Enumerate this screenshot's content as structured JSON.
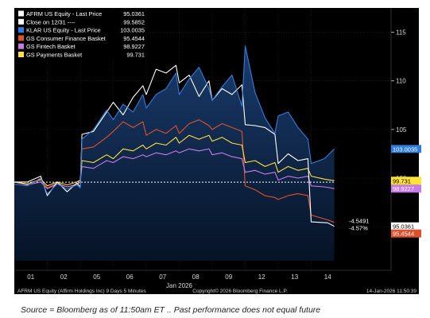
{
  "chart_data": {
    "type": "line",
    "title": "",
    "xlabel": "",
    "ylabel": "",
    "ylim": [
      91.5,
      117.5
    ],
    "y_ticks": [
      95,
      100,
      105,
      110,
      115
    ],
    "grid": true,
    "legend_position": "top-left",
    "x_tick_labels": [
      "01",
      "02",
      "05",
      "06",
      "07",
      "08",
      "09",
      "12",
      "13",
      "14"
    ],
    "month_label": "Jan 2026",
    "series": [
      {
        "name": "AFRM US Equity - Last Price",
        "legend_value": "95.0361",
        "color": "#ffffff",
        "end_label": "95.0361",
        "values": [
          [
            0,
            99.6
          ],
          [
            0.4,
            99.6
          ],
          [
            0.8,
            100.2
          ],
          [
            1.0,
            98.2
          ],
          [
            1.3,
            99.6
          ],
          [
            1.6,
            98.6
          ],
          [
            1.9,
            99.5
          ],
          [
            2.0,
            99.1
          ],
          [
            2.05,
            104.5
          ],
          [
            2.4,
            104.8
          ],
          [
            2.8,
            106.8
          ],
          [
            3.0,
            107.8
          ],
          [
            3.3,
            106.5
          ],
          [
            3.6,
            108.3
          ],
          [
            3.9,
            109.5
          ],
          [
            4.0,
            108.6
          ],
          [
            4.3,
            111.2
          ],
          [
            4.6,
            110.8
          ],
          [
            4.9,
            111.6
          ],
          [
            5.0,
            109.8
          ],
          [
            5.3,
            110.6
          ],
          [
            5.6,
            108.4
          ],
          [
            5.9,
            110.0
          ],
          [
            6.0,
            108.0
          ],
          [
            6.3,
            109.2
          ],
          [
            6.6,
            108.6
          ],
          [
            6.9,
            109.6
          ],
          [
            7.0,
            105.5
          ],
          [
            7.3,
            105.4
          ],
          [
            7.6,
            105.2
          ],
          [
            7.9,
            104.5
          ],
          [
            8.0,
            101.5
          ],
          [
            8.3,
            102.5
          ],
          [
            8.6,
            101.8
          ],
          [
            8.9,
            102.0
          ],
          [
            9.0,
            95.5
          ],
          [
            9.5,
            95.4
          ],
          [
            9.7,
            95.04
          ]
        ]
      },
      {
        "name": "Close on 12/31 ----",
        "legend_value": "99.5852",
        "color": "#ffffff",
        "dashed": true,
        "values": [
          [
            0,
            99.5852
          ],
          [
            9.7,
            99.5852
          ]
        ]
      },
      {
        "name": "KLAR US Equity - Last Price",
        "legend_value": "103.0035",
        "color": "#2f7de0",
        "end_label": "103.0035",
        "values": [
          [
            0,
            99.4
          ],
          [
            0.4,
            99.2
          ],
          [
            0.8,
            100.0
          ],
          [
            1.0,
            98.4
          ],
          [
            1.3,
            99.4
          ],
          [
            1.6,
            98.9
          ],
          [
            1.9,
            99.3
          ],
          [
            2.0,
            99.0
          ],
          [
            2.05,
            104.0
          ],
          [
            2.4,
            105.0
          ],
          [
            2.8,
            107.0
          ],
          [
            3.0,
            106.0
          ],
          [
            3.3,
            107.6
          ],
          [
            3.6,
            106.8
          ],
          [
            3.9,
            108.6
          ],
          [
            4.0,
            107.2
          ],
          [
            4.3,
            108.6
          ],
          [
            4.6,
            109.2
          ],
          [
            4.9,
            110.8
          ],
          [
            5.0,
            108.6
          ],
          [
            5.3,
            110.2
          ],
          [
            5.6,
            111.4
          ],
          [
            5.9,
            109.2
          ],
          [
            6.0,
            108.0
          ],
          [
            6.3,
            109.4
          ],
          [
            6.6,
            110.6
          ],
          [
            6.9,
            107.4
          ],
          [
            7.0,
            113.6
          ],
          [
            7.3,
            108.8
          ],
          [
            7.6,
            106.2
          ],
          [
            7.9,
            104.6
          ],
          [
            8.0,
            106.4
          ],
          [
            8.3,
            106.8
          ],
          [
            8.6,
            105.2
          ],
          [
            8.9,
            104.0
          ],
          [
            9.0,
            101.5
          ],
          [
            9.4,
            102.0
          ],
          [
            9.7,
            103.0
          ]
        ]
      },
      {
        "name": "GS Consumer Finance Basket",
        "legend_value": "95.4544",
        "color": "#e0502a",
        "end_label": "95.4544",
        "values": [
          [
            0,
            99.6
          ],
          [
            0.4,
            99.4
          ],
          [
            0.8,
            99.8
          ],
          [
            1.0,
            99.0
          ],
          [
            1.3,
            99.5
          ],
          [
            1.6,
            99.1
          ],
          [
            1.9,
            99.4
          ],
          [
            2.0,
            99.6
          ],
          [
            2.05,
            103.0
          ],
          [
            2.4,
            103.2
          ],
          [
            2.8,
            104.2
          ],
          [
            3.0,
            104.8
          ],
          [
            3.3,
            105.8
          ],
          [
            3.6,
            105.2
          ],
          [
            3.9,
            105.8
          ],
          [
            4.0,
            104.4
          ],
          [
            4.3,
            105.0
          ],
          [
            4.6,
            104.6
          ],
          [
            4.9,
            105.4
          ],
          [
            5.0,
            104.6
          ],
          [
            5.3,
            105.6
          ],
          [
            5.6,
            106.0
          ],
          [
            5.9,
            105.4
          ],
          [
            6.0,
            105.0
          ],
          [
            6.3,
            105.6
          ],
          [
            6.6,
            105.2
          ],
          [
            6.9,
            104.8
          ],
          [
            7.0,
            99.2
          ],
          [
            7.3,
            98.8
          ],
          [
            7.6,
            98.2
          ],
          [
            7.9,
            98.0
          ],
          [
            8.0,
            97.8
          ],
          [
            8.3,
            98.2
          ],
          [
            8.6,
            98.4
          ],
          [
            8.9,
            98.2
          ],
          [
            9.0,
            96.2
          ],
          [
            9.5,
            95.7
          ],
          [
            9.7,
            95.45
          ]
        ]
      },
      {
        "name": "GS Fintech Basket",
        "legend_value": "98.9227",
        "color": "#c77ae8",
        "end_label": "98.9227",
        "values": [
          [
            0,
            99.6
          ],
          [
            0.4,
            99.3
          ],
          [
            0.8,
            99.6
          ],
          [
            1.0,
            98.9
          ],
          [
            1.3,
            99.4
          ],
          [
            1.6,
            99.1
          ],
          [
            1.9,
            99.3
          ],
          [
            2.0,
            99.6
          ],
          [
            2.05,
            101.2
          ],
          [
            2.4,
            101.0
          ],
          [
            2.8,
            101.8
          ],
          [
            3.0,
            101.6
          ],
          [
            3.3,
            102.2
          ],
          [
            3.6,
            102.0
          ],
          [
            3.9,
            102.4
          ],
          [
            4.0,
            102.2
          ],
          [
            4.3,
            102.6
          ],
          [
            4.6,
            102.4
          ],
          [
            4.9,
            102.8
          ],
          [
            5.0,
            102.6
          ],
          [
            5.3,
            103.0
          ],
          [
            5.6,
            102.8
          ],
          [
            5.9,
            103.0
          ],
          [
            6.0,
            102.4
          ],
          [
            6.3,
            102.6
          ],
          [
            6.6,
            102.2
          ],
          [
            6.9,
            102.0
          ],
          [
            7.0,
            100.6
          ],
          [
            7.3,
            100.8
          ],
          [
            7.6,
            100.4
          ],
          [
            7.9,
            100.6
          ],
          [
            8.0,
            99.8
          ],
          [
            8.3,
            100.2
          ],
          [
            8.6,
            100.0
          ],
          [
            8.9,
            100.2
          ],
          [
            9.0,
            99.2
          ],
          [
            9.4,
            99.1
          ],
          [
            9.7,
            98.92
          ]
        ]
      },
      {
        "name": "GS Payments Basket",
        "legend_value": "99.731",
        "color": "#ffe23a",
        "end_label": "99.731",
        "values": [
          [
            0,
            99.6
          ],
          [
            0.4,
            99.4
          ],
          [
            0.8,
            99.9
          ],
          [
            1.0,
            99.2
          ],
          [
            1.3,
            99.6
          ],
          [
            1.6,
            99.3
          ],
          [
            1.9,
            99.6
          ],
          [
            2.0,
            99.8
          ],
          [
            2.05,
            101.8
          ],
          [
            2.4,
            101.6
          ],
          [
            2.8,
            102.4
          ],
          [
            3.0,
            102.0
          ],
          [
            3.3,
            103.0
          ],
          [
            3.6,
            102.8
          ],
          [
            3.9,
            103.4
          ],
          [
            4.0,
            103.0
          ],
          [
            4.3,
            103.6
          ],
          [
            4.6,
            103.4
          ],
          [
            4.9,
            104.2
          ],
          [
            5.0,
            103.6
          ],
          [
            5.3,
            104.4
          ],
          [
            5.6,
            104.0
          ],
          [
            5.9,
            104.4
          ],
          [
            6.0,
            103.8
          ],
          [
            6.3,
            104.2
          ],
          [
            6.6,
            103.6
          ],
          [
            6.9,
            103.4
          ],
          [
            7.0,
            101.6
          ],
          [
            7.3,
            101.8
          ],
          [
            7.6,
            101.2
          ],
          [
            7.9,
            101.6
          ],
          [
            8.0,
            100.6
          ],
          [
            8.3,
            101.2
          ],
          [
            8.6,
            100.8
          ],
          [
            8.9,
            101.0
          ],
          [
            9.0,
            100.2
          ],
          [
            9.4,
            99.9
          ],
          [
            9.7,
            99.73
          ]
        ]
      }
    ],
    "annotations": [
      {
        "text": "-4.5491",
        "color": "#ffffff"
      },
      {
        "text": "-4.57%",
        "color": "#ffffff"
      }
    ],
    "colors": {
      "background": "#000000",
      "area_top": "#1b3f73",
      "area_bottom": "#061428",
      "grid": "#2a2a2a",
      "axis_text": "#d8d8d8"
    }
  },
  "footer": {
    "left": "AFRM US Equity (Affirm Holdings Inc) 9 Days 5 Minutes",
    "center": "Copyright© 2026 Bloomberg Finance L.P.",
    "right": "14-Jan-2026 11:50:39"
  },
  "source_note": "Source = Bloomberg as of 11:50am ET .. Past performance does not equal future"
}
